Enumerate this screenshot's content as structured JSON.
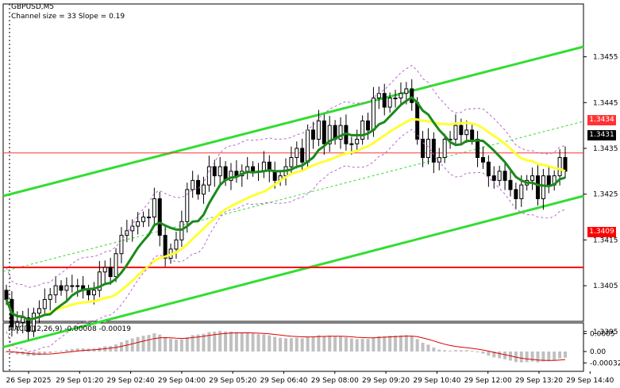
{
  "header": {
    "symbol": "GBPUSD,M5",
    "channel_info": "Channel size = 33 Slope = 0.19"
  },
  "chart_data": {
    "type": "candlestick",
    "timeframe": "M5",
    "price_ylim": [
      1.3389,
      1.3459
    ],
    "y_ticks": [
      "1.3455",
      "1.3445",
      "1.3435",
      "1.3425",
      "1.3415",
      "1.3405",
      "1.3395"
    ],
    "x_ticks": [
      "26 Sep 2025",
      "29 Sep 01:20",
      "29 Sep 02:40",
      "29 Sep 04:00",
      "29 Sep 05:20",
      "29 Sep 06:40",
      "29 Sep 08:00",
      "29 Sep 09:20",
      "29 Sep 10:40",
      "29 Sep 12:00",
      "29 Sep 13:20",
      "29 Sep 14:40"
    ],
    "price_levels": [
      {
        "label": "1.3434",
        "value": 1.3434,
        "color": "#ff3333"
      },
      {
        "label": "1.3431",
        "value": 1.3431,
        "color": "#000000"
      },
      {
        "label": "1.3409",
        "value": 1.3409,
        "color": "#ff0000"
      }
    ],
    "closes": [
      1.3402,
      1.3396,
      1.3397,
      1.3398,
      1.3395,
      1.3399,
      1.34,
      1.3402,
      1.3403,
      1.3405,
      1.3404,
      1.3405,
      1.3405,
      1.3405,
      1.3404,
      1.3403,
      1.3404,
      1.3408,
      1.3409,
      1.3407,
      1.3412,
      1.3416,
      1.3417,
      1.3418,
      1.3419,
      1.342,
      1.342,
      1.3424,
      1.3416,
      1.3411,
      1.3413,
      1.3415,
      1.3419,
      1.3426,
      1.3428,
      1.3425,
      1.3427,
      1.3431,
      1.3429,
      1.3431,
      1.3428,
      1.343,
      1.3429,
      1.343,
      1.3431,
      1.343,
      1.343,
      1.3432,
      1.343,
      1.3428,
      1.3429,
      1.3431,
      1.3433,
      1.3435,
      1.3432,
      1.3439,
      1.3437,
      1.3441,
      1.3436,
      1.344,
      1.3437,
      1.344,
      1.3436,
      1.3436,
      1.3437,
      1.3441,
      1.3439,
      1.3446,
      1.3447,
      1.3444,
      1.3446,
      1.3446,
      1.3447,
      1.3448,
      1.3445,
      1.3437,
      1.3433,
      1.3437,
      1.3432,
      1.3433,
      1.3437,
      1.3437,
      1.344,
      1.3438,
      1.3439,
      1.3437,
      1.3433,
      1.3432,
      1.3429,
      1.3428,
      1.343,
      1.3428,
      1.3426,
      1.3424,
      1.3427,
      1.3428,
      1.3429,
      1.3424,
      1.3429,
      1.3427,
      1.3429,
      1.3433,
      1.343
    ],
    "overlays": [
      {
        "name": "MA fast",
        "color": "#1a8a1a"
      },
      {
        "name": "MA slow",
        "color": "#ffff33"
      },
      {
        "name": "Channel",
        "color": "#33dd33"
      }
    ],
    "macd": {
      "label": "MACD(12,26,9) -0.00008 -0.00019",
      "y_ticks": [
        "0.0005",
        "0.00",
        "-0.00032"
      ],
      "ylim": [
        -0.00036,
        0.0006
      ]
    },
    "grid": false,
    "background": "#ffffff"
  }
}
